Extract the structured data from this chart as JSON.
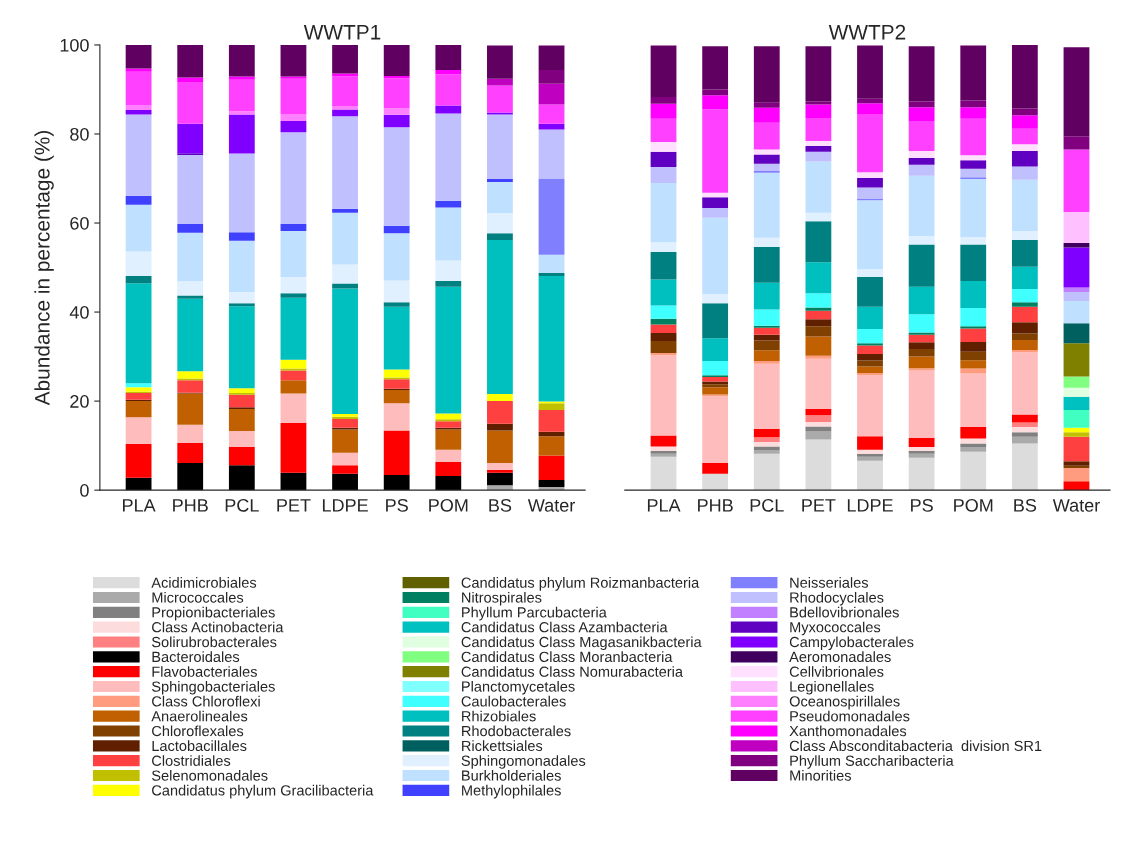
{
  "chart_data": [
    {
      "type": "bar",
      "title": "WWTP1",
      "ylabel": "Abundance in percentage (%)",
      "stacked": true,
      "legend": "bottom",
      "grid": false,
      "categories": [
        "PLA",
        "PHB",
        "PCL",
        "PET",
        "LDPE",
        "PS",
        "POM",
        "BS",
        "Water"
      ],
      "ylim": [
        0,
        100
      ],
      "yticks": [
        0,
        20,
        40,
        60,
        80,
        100
      ],
      "series": [
        {
          "name": "Acidimicrobiales",
          "color": "#dcdcdc",
          "values": [
            0,
            0,
            0,
            0,
            0,
            0,
            0,
            0,
            0
          ]
        },
        {
          "name": "Micrococcales",
          "color": "#aaaaaa",
          "values": [
            0,
            0,
            0,
            0,
            0,
            0,
            0,
            1.1,
            0.7
          ]
        },
        {
          "name": "Propionibacteriales",
          "color": "#808080",
          "values": [
            0,
            0,
            0,
            0,
            0,
            0,
            0,
            0,
            0
          ]
        },
        {
          "name": "Class Actinobacteria",
          "color": "#fcdcdc",
          "values": [
            0,
            0,
            0,
            0,
            0,
            0,
            0,
            0,
            0
          ]
        },
        {
          "name": "Solirubrobacterales",
          "color": "#ff8080",
          "values": [
            0,
            0,
            0,
            0,
            0,
            0,
            0,
            0,
            0
          ]
        },
        {
          "name": "Bacteroidales",
          "color": "#000000",
          "values": [
            2.8,
            6.1,
            5.6,
            3.9,
            3.7,
            3.4,
            3.2,
            2.8,
            1.6
          ]
        },
        {
          "name": "Flavobacteriales",
          "color": "#ff0000",
          "values": [
            7.6,
            4.5,
            4.1,
            11.2,
            1.9,
            10,
            3.1,
            0.7,
            5.5
          ]
        },
        {
          "name": "Sphingobacteriales",
          "color": "#ffbcbc",
          "values": [
            6,
            4.1,
            3.6,
            6.6,
            2.8,
            6.1,
            2.8,
            1.5,
            0
          ]
        },
        {
          "name": "Class Chloroflexi",
          "color": "#ff9c80",
          "values": [
            0,
            0,
            0,
            0,
            0,
            0,
            0,
            0,
            0
          ]
        },
        {
          "name": "Anaerolineales",
          "color": "#c06000",
          "values": [
            3.6,
            7,
            4.9,
            3,
            5.2,
            3,
            4.5,
            7.3,
            4.3
          ]
        },
        {
          "name": "Chloroflexales",
          "color": "#804000",
          "values": [
            0,
            0,
            0,
            0,
            0,
            0,
            0,
            0,
            0
          ]
        },
        {
          "name": "Lactobacillales",
          "color": "#602000",
          "values": [
            0.3,
            0.2,
            0.4,
            0,
            0.4,
            0.3,
            0.4,
            1.5,
            1
          ]
        },
        {
          "name": "Clostridiales",
          "color": "#ff4040",
          "values": [
            1.5,
            2.8,
            2.8,
            2.2,
            2,
            2.1,
            1.5,
            5.1,
            4.9
          ]
        },
        {
          "name": "Selenomonadales",
          "color": "#c0c000",
          "values": [
            0.3,
            0.4,
            0.4,
            0.4,
            0.5,
            0.4,
            0.4,
            0,
            1.5
          ]
        },
        {
          "name": "Candidatus phylum Gracilibacteria",
          "color": "#ffff00",
          "values": [
            1,
            1.6,
            1.1,
            2,
            0.6,
            1.8,
            1.3,
            1.6,
            0.4
          ]
        },
        {
          "name": "Candidatus phylum Roizmanbacteria",
          "color": "#606000",
          "values": [
            0,
            0,
            0,
            0,
            0,
            0,
            0,
            0,
            0
          ]
        },
        {
          "name": "Nitrospirales",
          "color": "#008060",
          "values": [
            0,
            0,
            0,
            0,
            0,
            0,
            0,
            0,
            0
          ]
        },
        {
          "name": "Phyllum Parcubacteria",
          "color": "#40ffc0",
          "values": [
            0,
            0,
            0,
            0,
            0,
            0,
            0,
            0,
            0
          ]
        },
        {
          "name": "Candidatus Class Azambacteria",
          "color": "#00c0c0",
          "values": [
            0,
            0,
            0,
            0,
            0,
            0,
            0,
            0,
            0
          ]
        },
        {
          "name": "Candidatus Class Magasanikbacteria",
          "color": "#e0ffe0",
          "values": [
            0,
            0,
            0,
            0,
            0,
            0,
            0,
            0,
            0
          ]
        },
        {
          "name": "Candidatus Class Moranbacteria",
          "color": "#80ff80",
          "values": [
            0,
            0,
            0,
            0,
            0,
            0,
            0,
            0,
            0
          ]
        },
        {
          "name": "Candidatus Class Nomurabacteria",
          "color": "#808000",
          "values": [
            0,
            0,
            0,
            0,
            0,
            0,
            0,
            0,
            0
          ]
        },
        {
          "name": "Planctomycetales",
          "color": "#80ffff",
          "values": [
            0,
            0,
            0,
            0,
            0,
            0,
            0,
            0,
            0
          ]
        },
        {
          "name": "Caulobacterales",
          "color": "#40ffff",
          "values": [
            0.9,
            0,
            0,
            0,
            0,
            0,
            0,
            0,
            0
          ]
        },
        {
          "name": "Rhizobiales",
          "color": "#00bfbf",
          "values": [
            22.5,
            16.3,
            18.4,
            13.9,
            28.2,
            14.1,
            28.5,
            34.6,
            28.2
          ]
        },
        {
          "name": "Rhodobacterales",
          "color": "#008080",
          "values": [
            1.6,
            0.7,
            0.7,
            1,
            1.1,
            1,
            1.3,
            1.5,
            0.7
          ]
        },
        {
          "name": "Rickettsiales",
          "color": "#006060",
          "values": [
            0,
            0,
            0,
            0,
            0,
            0,
            0,
            0,
            0
          ]
        },
        {
          "name": "Sphingomonadales",
          "color": "#e0f0ff",
          "values": [
            5.5,
            3.2,
            2.5,
            3.7,
            4.3,
            4.9,
            4.6,
            4.5,
            0
          ]
        },
        {
          "name": "Burkholderiales",
          "color": "#c0e0ff",
          "values": [
            10.5,
            10.9,
            11.5,
            10.3,
            11.6,
            10.6,
            11.9,
            7,
            4.1
          ]
        },
        {
          "name": "Methylophilales",
          "color": "#4040ff",
          "values": [
            2,
            2,
            1.9,
            1.6,
            0.9,
            1.7,
            1.5,
            0.7,
            0
          ]
        },
        {
          "name": "Neisseriales",
          "color": "#8080ff",
          "values": [
            0,
            0,
            0,
            0,
            0,
            0,
            0,
            0,
            17.1
          ]
        },
        {
          "name": "Rhodocyclales",
          "color": "#c0c0ff",
          "values": [
            18.3,
            15.5,
            17.7,
            20.6,
            20.8,
            22.1,
            19.6,
            14.5,
            11
          ]
        },
        {
          "name": "Bdellovibrionales",
          "color": "#c080ff",
          "values": [
            0,
            0,
            0,
            0,
            0,
            0,
            0,
            0,
            0
          ]
        },
        {
          "name": "Myxococcales",
          "color": "#6000c0",
          "values": [
            0,
            0.4,
            0,
            0,
            0,
            0,
            0,
            0,
            0
          ]
        },
        {
          "name": "Campylobacterales",
          "color": "#8000ff",
          "values": [
            1,
            6.6,
            8.8,
            2.5,
            1.5,
            2.8,
            1.8,
            0.4,
            1.3
          ]
        },
        {
          "name": "Aeromonadales",
          "color": "#400060",
          "values": [
            0,
            0,
            0,
            0,
            0,
            0,
            0,
            0,
            0
          ]
        },
        {
          "name": "Cellvibrionales",
          "color": "#ffe0ff",
          "values": [
            0,
            0,
            0,
            0,
            0,
            0,
            0,
            0,
            0
          ]
        },
        {
          "name": "Legionellales",
          "color": "#ffc0ff",
          "values": [
            0,
            0,
            0,
            0,
            0,
            0,
            0,
            0,
            0
          ]
        },
        {
          "name": "Oceanospirillales",
          "color": "#ff80ff",
          "values": [
            1,
            0,
            0.7,
            1.6,
            0.7,
            1.5,
            0,
            0,
            0
          ]
        },
        {
          "name": "Pseudomonadales",
          "color": "#ff40ff",
          "values": [
            7.6,
            9.4,
            7.1,
            7.9,
            6.7,
            6.7,
            7,
            6.1,
            4.3
          ]
        },
        {
          "name": "Xanthomonadales",
          "color": "#ff00ff",
          "values": [
            0.7,
            1,
            0.7,
            0.5,
            0.7,
            0.5,
            1,
            0,
            0
          ]
        },
        {
          "name": "Class Absconditabacteria  division SR1",
          "color": "#c000c0",
          "values": [
            0,
            0,
            0,
            0,
            0,
            0,
            0,
            1.5,
            4.7
          ]
        },
        {
          "name": "Phyllum Saccharibacteria",
          "color": "#800080",
          "values": [
            0,
            0,
            0,
            0,
            0,
            0,
            0,
            0,
            3.1
          ]
        },
        {
          "name": "Minorities",
          "color": "#600060",
          "values": [
            5.3,
            7.3,
            7.1,
            7.1,
            6.4,
            7,
            5.6,
            7.5,
            5.5
          ]
        }
      ]
    },
    {
      "type": "bar",
      "title": "WWTP2",
      "stacked": true,
      "grid": false,
      "tick_labels": "x",
      "categories": [
        "PLA",
        "PHB",
        "PCL",
        "PET",
        "LDPE",
        "PS",
        "POM",
        "BS",
        "Water"
      ],
      "ylim": [
        0,
        100
      ],
      "series": [
        {
          "color": "#dcdcdc",
          "values": [
            7.5,
            3.7,
            8.2,
            11.4,
            6.6,
            7.3,
            8.6,
            10.5,
            0
          ]
        },
        {
          "color": "#aaaaaa",
          "values": [
            0.7,
            0,
            0.7,
            1.9,
            0.9,
            0.9,
            1,
            1.5,
            0
          ]
        },
        {
          "color": "#808080",
          "values": [
            0.6,
            0,
            0.9,
            1,
            0.6,
            0.6,
            0.9,
            1,
            0
          ]
        },
        {
          "color": "#fcdcdc",
          "values": [
            1,
            0,
            1,
            1,
            1,
            0.9,
            1.1,
            1.2,
            0
          ]
        },
        {
          "color": "#ff8080",
          "values": [
            0,
            0,
            1.1,
            1.5,
            0,
            0,
            0,
            1,
            0
          ]
        },
        {
          "color": "#000000",
          "values": [
            0,
            0,
            0,
            0,
            0,
            0,
            0,
            0,
            0
          ]
        },
        {
          "color": "#ff0000",
          "values": [
            2.5,
            2.4,
            1.9,
            1.5,
            3,
            2,
            2.6,
            1.8,
            2
          ]
        },
        {
          "color": "#ffbcbc",
          "values": [
            18,
            15,
            14.6,
            11.2,
            13.7,
            15.2,
            12,
            14,
            0
          ]
        },
        {
          "color": "#ff9c80",
          "values": [
            0.5,
            0.4,
            0.6,
            0.7,
            0.5,
            0.5,
            1.1,
            0.5,
            3
          ]
        },
        {
          "color": "#c06000",
          "values": [
            0,
            1.6,
            2.4,
            4.3,
            1.5,
            2.6,
            1.9,
            2.2,
            0
          ]
        },
        {
          "color": "#804000",
          "values": [
            2.7,
            0.7,
            2.2,
            2.3,
            1.3,
            1.7,
            1.9,
            1.5,
            0.5
          ]
        },
        {
          "color": "#602000",
          "values": [
            1.8,
            0.6,
            1.3,
            1.6,
            1.5,
            1.5,
            2.2,
            2.5,
            1
          ]
        },
        {
          "color": "#ff4040",
          "values": [
            1.9,
            1,
            1.6,
            1.9,
            1.9,
            1.7,
            3,
            3.5,
            5.5
          ]
        },
        {
          "color": "#c0c000",
          "values": [
            0,
            0,
            0,
            0,
            0,
            0,
            0,
            0,
            1
          ]
        },
        {
          "color": "#ffff00",
          "values": [
            0,
            0,
            0,
            0,
            0,
            0,
            0,
            0,
            1
          ]
        },
        {
          "color": "#606000",
          "values": [
            0,
            0,
            0,
            0,
            0,
            0,
            0,
            0,
            0
          ]
        },
        {
          "color": "#008060",
          "values": [
            1.3,
            0.4,
            0.4,
            0.7,
            0.5,
            0.5,
            0.5,
            1,
            0
          ]
        },
        {
          "color": "#40ffc0",
          "values": [
            0,
            0,
            0,
            0,
            0,
            0,
            0,
            0,
            4
          ]
        },
        {
          "color": "#00c0c0",
          "values": [
            0,
            0,
            0,
            0,
            0,
            0,
            0,
            0,
            3
          ]
        },
        {
          "color": "#e0ffe0",
          "values": [
            0,
            0,
            0,
            0,
            0,
            0,
            0,
            0,
            2
          ]
        },
        {
          "color": "#80ff80",
          "values": [
            0,
            0,
            0,
            0,
            0,
            0,
            0,
            0,
            2.5
          ]
        },
        {
          "color": "#808000",
          "values": [
            0,
            0,
            0,
            0,
            0,
            0,
            0,
            0,
            7.5
          ]
        },
        {
          "color": "#80ffff",
          "values": [
            0,
            0,
            0,
            0,
            0,
            0,
            0,
            0,
            0
          ]
        },
        {
          "color": "#40ffff",
          "values": [
            3,
            3.2,
            3.7,
            3.2,
            3.2,
            4.1,
            4.1,
            3,
            0
          ]
        },
        {
          "color": "#00bfbf",
          "values": [
            5.8,
            5.1,
            6,
            7,
            5,
            6.2,
            6.1,
            5,
            0
          ]
        },
        {
          "color": "#008080",
          "values": [
            6.2,
            7.9,
            8,
            9.2,
            6.7,
            9.5,
            8.2,
            6,
            0
          ]
        },
        {
          "color": "#006060",
          "values": [
            0,
            0,
            0,
            0,
            0,
            0,
            0,
            0,
            4.5
          ]
        },
        {
          "color": "#e0f0ff",
          "values": [
            2.2,
            2,
            2.1,
            1.9,
            1.7,
            1.9,
            1.6,
            2,
            0
          ]
        },
        {
          "color": "#c0e0ff",
          "values": [
            13.3,
            17.2,
            14.6,
            11.5,
            15.5,
            13.5,
            13.1,
            11.5,
            5
          ]
        },
        {
          "color": "#4040ff",
          "values": [
            0,
            0,
            0,
            0,
            0,
            0,
            0,
            0,
            0
          ]
        },
        {
          "color": "#8080ff",
          "values": [
            0,
            0,
            0.4,
            0,
            0.4,
            0,
            0.4,
            0,
            0
          ]
        },
        {
          "color": "#c0c0ff",
          "values": [
            3.6,
            2.2,
            1.6,
            2.2,
            2.5,
            2.5,
            1.9,
            3,
            2
          ]
        },
        {
          "color": "#c080ff",
          "values": [
            0,
            0,
            0,
            0,
            0,
            0,
            0,
            0,
            1
          ]
        },
        {
          "color": "#6000c0",
          "values": [
            3.4,
            2.4,
            2.1,
            1.3,
            2.1,
            1.5,
            1.9,
            3.5,
            0
          ]
        },
        {
          "color": "#8000ff",
          "values": [
            0,
            0,
            0,
            0,
            0,
            0,
            0,
            0,
            9
          ]
        },
        {
          "color": "#400060",
          "values": [
            0,
            0,
            0,
            0,
            0,
            0,
            0,
            0,
            1
          ]
        },
        {
          "color": "#ffe0ff",
          "values": [
            2.2,
            1,
            1.1,
            1.1,
            1.3,
            1.6,
            1.1,
            1.5,
            0
          ]
        },
        {
          "color": "#ffc0ff",
          "values": [
            0,
            0,
            0,
            0,
            0,
            0,
            0,
            0,
            7
          ]
        },
        {
          "color": "#ff80ff",
          "values": [
            0,
            0,
            0,
            0,
            0,
            0,
            0,
            0,
            0
          ]
        },
        {
          "color": "#ff40ff",
          "values": [
            5.2,
            18.7,
            6,
            5.2,
            13.1,
            6.7,
            8.2,
            3.5,
            14
          ]
        },
        {
          "color": "#ff00ff",
          "values": [
            3.4,
            3.2,
            3.4,
            3,
            2.4,
            3.1,
            2.6,
            3,
            0
          ]
        },
        {
          "color": "#c000c0",
          "values": [
            0,
            0,
            0,
            0,
            0,
            0,
            0,
            0,
            0
          ]
        },
        {
          "color": "#800080",
          "values": [
            1.5,
            1.3,
            1.1,
            0.7,
            1,
            1.3,
            1.5,
            1.5,
            3
          ]
        },
        {
          "color": "#600060",
          "values": [
            11.6,
            9.7,
            12.7,
            12.4,
            12,
            12.4,
            12.4,
            14.3,
            20
          ]
        }
      ]
    }
  ]
}
